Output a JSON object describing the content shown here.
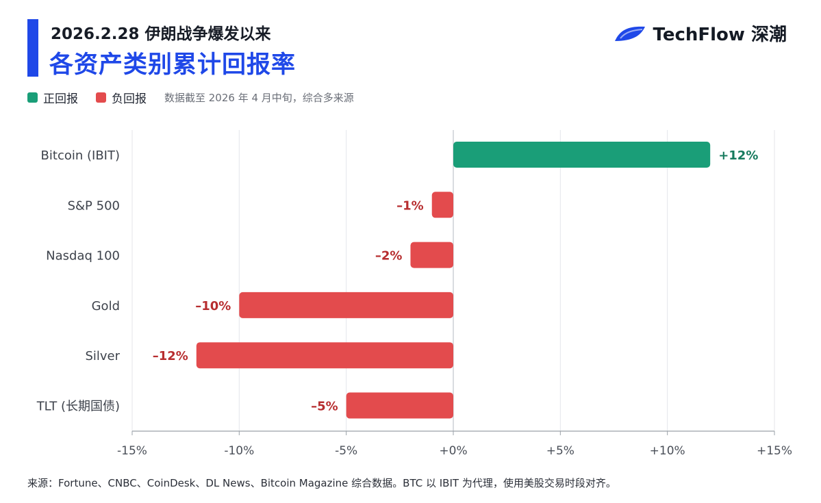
{
  "header": {
    "subtitle": "2026.2.28 伊朗战争爆发以来",
    "title": "各资产类别累计回报率"
  },
  "brand": {
    "name": "TechFlow 深潮",
    "logo_icon": "techflow-wing-logo",
    "logo_color": "#1f48e8"
  },
  "legend": {
    "positive_label": "正回报",
    "negative_label": "负回报",
    "note": "数据截至 2026 年 4 月中旬，综合多来源"
  },
  "colors": {
    "positive": "#1a9e78",
    "negative": "#e34b4d",
    "positive_text": "#167a5d",
    "negative_text": "#b72d2f",
    "accent": "#1f48e8"
  },
  "chart_data": {
    "type": "bar",
    "orientation": "horizontal",
    "title": "各资产类别累计回报率",
    "xlabel": "",
    "ylabel": "",
    "xlim": [
      -15,
      15
    ],
    "grid": true,
    "categories": [
      "Bitcoin (IBIT)",
      "S&P 500",
      "Nasdaq 100",
      "Gold",
      "Silver",
      "TLT (长期国债)"
    ],
    "values": [
      12,
      -1,
      -2,
      -10,
      -12,
      -5
    ],
    "value_labels": [
      "+12%",
      "–1%",
      "–2%",
      "–10%",
      "–12%",
      "–5%"
    ],
    "ticks": [
      -15,
      -10,
      -5,
      0,
      5,
      10,
      15
    ],
    "tick_labels": [
      "-15%",
      "-10%",
      "-5%",
      "+0%",
      "+5%",
      "+10%",
      "+15%"
    ]
  },
  "footer": {
    "source": "来源：Fortune、CNBC、CoinDesk、DL News、Bitcoin Magazine 综合数据。BTC 以 IBIT 为代理，使用美股交易时段对齐。"
  }
}
